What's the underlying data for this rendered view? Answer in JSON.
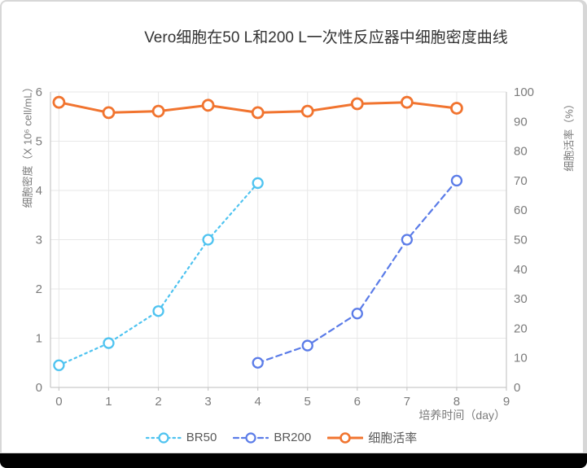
{
  "chart_data": {
    "type": "line",
    "title": "Vero细胞在50 L和200 L一次性反应器中细胞密度曲线",
    "x_axis": {
      "label": "培养时间（day）",
      "ticks": [
        0,
        1,
        2,
        3,
        4,
        5,
        6,
        7,
        8,
        9
      ],
      "range": [
        0,
        9
      ]
    },
    "y_left": {
      "label": "细胞密度（X 10⁶ cell/mL）",
      "ticks": [
        0,
        1,
        2,
        3,
        4,
        5,
        6
      ],
      "range": [
        0,
        6
      ]
    },
    "y_right": {
      "label": "细胞活率（%）",
      "ticks": [
        0,
        10,
        20,
        30,
        40,
        50,
        60,
        70,
        80,
        90,
        100
      ],
      "range": [
        0,
        100
      ]
    },
    "grid": true,
    "legend_position": "bottom",
    "series": [
      {
        "id": "br50",
        "name": "BR50",
        "axis": "left",
        "line": "dotted",
        "color": "#4ec3f0",
        "x": [
          0,
          1,
          2,
          3,
          4
        ],
        "values": [
          0.45,
          0.9,
          1.55,
          3.0,
          4.15
        ]
      },
      {
        "id": "br200",
        "name": "BR200",
        "axis": "left",
        "line": "dashed",
        "color": "#5b7ce8",
        "x": [
          4,
          5,
          6,
          7,
          8
        ],
        "values": [
          0.5,
          0.85,
          1.5,
          3.0,
          4.2
        ]
      },
      {
        "id": "viability",
        "name": "细胞活率",
        "axis": "right",
        "line": "solid",
        "color": "#f1742f",
        "x": [
          0,
          1,
          2,
          3,
          4,
          5,
          6,
          7,
          8
        ],
        "values": [
          96.5,
          93,
          93.5,
          95.5,
          93,
          93.5,
          96,
          96.5,
          94.5
        ]
      }
    ]
  },
  "colors": {
    "grid": "#e7e7e7",
    "axis": "#c9c9c9",
    "tick_text": "#7b7b7b",
    "title_text": "#333333",
    "legend_text": "#595959",
    "card_border": "#d7d7d7",
    "bottom_bar": "#000000",
    "marker_fill": "#ffffff"
  }
}
